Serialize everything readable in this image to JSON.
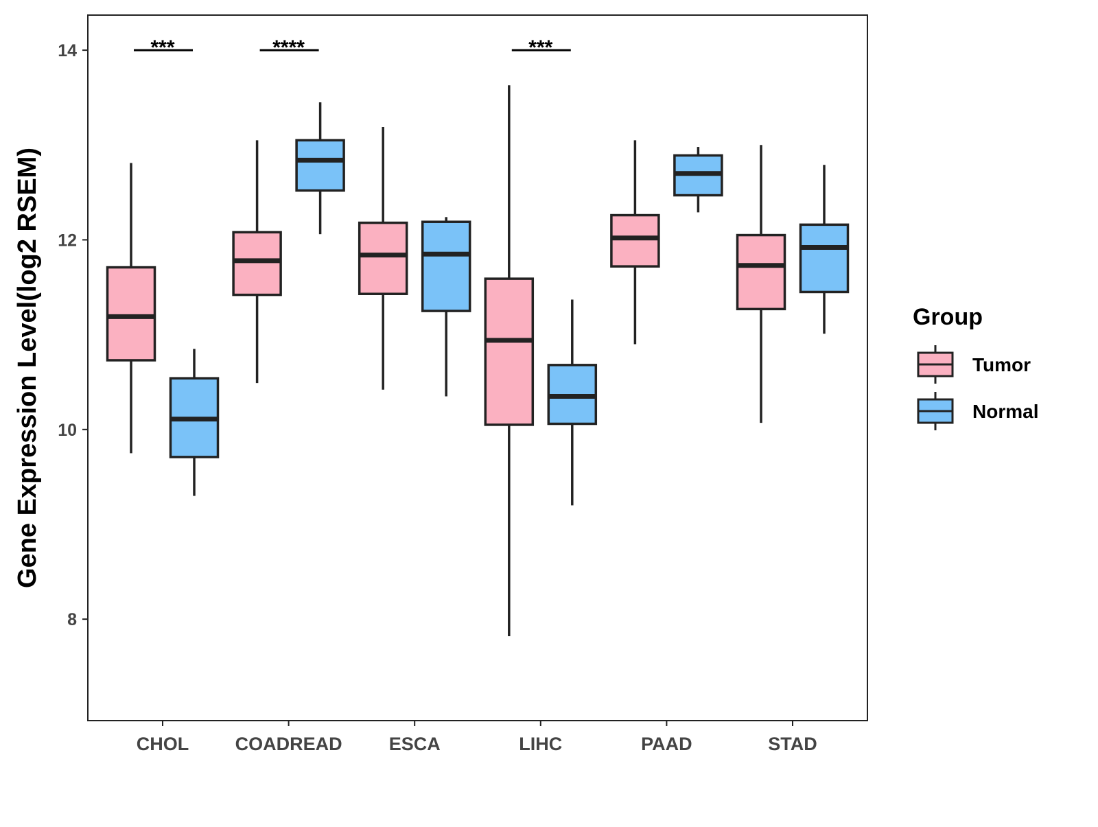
{
  "chart_data": {
    "type": "boxplot",
    "title": "",
    "xlabel": "",
    "ylabel": "Gene Expression Level(log2 RSEM)",
    "ylim": [
      6.93,
      14.37
    ],
    "yticks": [
      8,
      10,
      12,
      14
    ],
    "grid": false,
    "categories": [
      "CHOL",
      "COADREAD",
      "ESCA",
      "LIHC",
      "PAAD",
      "STAD"
    ],
    "legend": {
      "title": "Group",
      "placement": "right"
    },
    "series": [
      {
        "name": "Tumor",
        "color": "#FBB1C1",
        "boxes": [
          {
            "min": 9.75,
            "q1": 10.73,
            "median": 11.19,
            "q3": 11.71,
            "max": 12.81
          },
          {
            "min": 10.49,
            "q1": 11.42,
            "median": 11.78,
            "q3": 12.08,
            "max": 13.05
          },
          {
            "min": 10.42,
            "q1": 11.43,
            "median": 11.84,
            "q3": 12.18,
            "max": 13.19
          },
          {
            "min": 7.82,
            "q1": 10.05,
            "median": 10.94,
            "q3": 11.59,
            "max": 13.63
          },
          {
            "min": 10.9,
            "q1": 11.72,
            "median": 12.02,
            "q3": 12.26,
            "max": 13.05
          },
          {
            "min": 10.07,
            "q1": 11.27,
            "median": 11.73,
            "q3": 12.05,
            "max": 13.0
          }
        ]
      },
      {
        "name": "Normal",
        "color": "#7AC2F8",
        "boxes": [
          {
            "min": 9.3,
            "q1": 9.71,
            "median": 10.11,
            "q3": 10.54,
            "max": 10.85
          },
          {
            "min": 12.06,
            "q1": 12.52,
            "median": 12.84,
            "q3": 13.05,
            "max": 13.45
          },
          {
            "min": 10.35,
            "q1": 11.25,
            "median": 11.85,
            "q3": 12.19,
            "max": 12.24
          },
          {
            "min": 9.2,
            "q1": 10.06,
            "median": 10.35,
            "q3": 10.68,
            "max": 11.37
          },
          {
            "min": 12.29,
            "q1": 12.47,
            "median": 12.7,
            "q3": 12.89,
            "max": 12.98
          },
          {
            "min": 11.01,
            "q1": 11.45,
            "median": 11.92,
            "q3": 12.16,
            "max": 12.79
          }
        ]
      }
    ],
    "annotations": [
      {
        "category": "CHOL",
        "label": "***",
        "y": 14
      },
      {
        "category": "COADREAD",
        "label": "****",
        "y": 14
      },
      {
        "category": "LIHC",
        "label": "***",
        "y": 14
      }
    ]
  }
}
